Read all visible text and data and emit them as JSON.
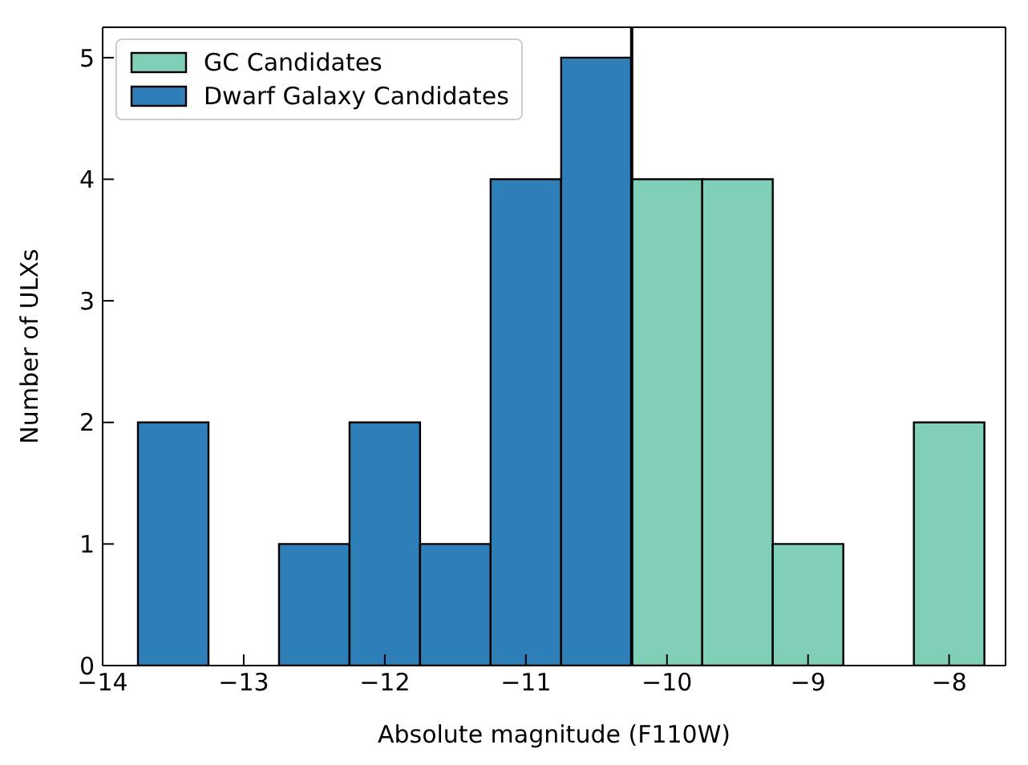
{
  "chart_data": {
    "type": "histogram",
    "xlabel": "Absolute magnitude (F110W)",
    "ylabel": "Number of ULXs",
    "bins": [
      -13.75,
      -13.25,
      -12.75,
      -12.25,
      -11.75,
      -11.25,
      -10.75,
      -10.25,
      -9.75,
      -9.25,
      -8.75,
      -8.25,
      -7.75
    ],
    "series": [
      {
        "name": "GC Candidates",
        "color": "#7fcfb8",
        "values": [
          0,
          0,
          0,
          0,
          0,
          0,
          0,
          4,
          4,
          1,
          0,
          2
        ]
      },
      {
        "name": "Dwarf Galaxy Candidates",
        "color": "#2e7eb8",
        "values": [
          2,
          0,
          1,
          2,
          1,
          4,
          5,
          0,
          0,
          0,
          0,
          0
        ]
      }
    ],
    "xlim": [
      -14,
      -7.6
    ],
    "xticks": [
      {
        "value": -14,
        "label": "−14"
      },
      {
        "value": -13,
        "label": "−13"
      },
      {
        "value": -12,
        "label": "−12"
      },
      {
        "value": -11,
        "label": "−11"
      },
      {
        "value": -10,
        "label": "−10"
      },
      {
        "value": -9,
        "label": "−9"
      },
      {
        "value": -8,
        "label": "−8"
      }
    ],
    "ylim": [
      0,
      5.25
    ],
    "yticks": [
      0,
      1,
      2,
      3,
      4,
      5
    ],
    "ref_lines": [
      {
        "axis": "x",
        "value": -10.25,
        "color": "#000000"
      }
    ],
    "legend": "top left",
    "grid": false
  }
}
